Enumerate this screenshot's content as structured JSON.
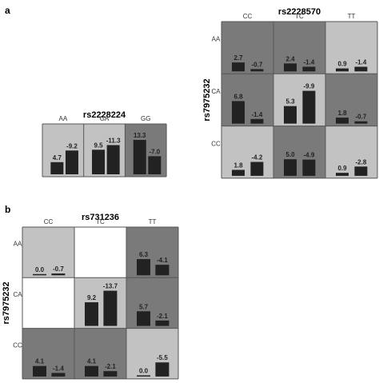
{
  "figure": {
    "panel_a_label": "a",
    "panel_b_label": "b"
  },
  "colors": {
    "light": "#c2c2c2",
    "dark": "#7a7a7a",
    "white": "#ffffff",
    "bar": "#222222",
    "border": "#555555"
  },
  "chart_data": [
    {
      "type": "bar",
      "title": "rs2228224",
      "col_labels": [
        "AA",
        "GA",
        "GG"
      ],
      "row_labels": [],
      "cells": [
        [
          {
            "shade": "light",
            "values": [
              4.7,
              -9.2
            ]
          },
          {
            "shade": "light",
            "values": [
              9.5,
              -11.3
            ]
          },
          {
            "shade": "dark",
            "values": [
              13.3,
              -7.0
            ]
          }
        ]
      ],
      "value_labels": [
        [
          [
            "4.7",
            "-9.2"
          ],
          [
            "9.5",
            "-11.3"
          ],
          [
            "13.3",
            "-7.0"
          ]
        ]
      ]
    },
    {
      "type": "bar",
      "title": "rs2228570",
      "ylabel": "rs7975232",
      "col_labels": [
        "CC",
        "TC",
        "TT"
      ],
      "row_labels": [
        "AA",
        "CA",
        "CC"
      ],
      "cells": [
        [
          {
            "shade": "dark",
            "values": [
              2.7,
              -0.7
            ]
          },
          {
            "shade": "dark",
            "values": [
              2.4,
              -1.4
            ]
          },
          {
            "shade": "light",
            "values": [
              0.9,
              -1.4
            ]
          }
        ],
        [
          {
            "shade": "dark",
            "values": [
              6.8,
              -1.4
            ]
          },
          {
            "shade": "light",
            "values": [
              5.3,
              -9.9
            ]
          },
          {
            "shade": "dark",
            "values": [
              1.8,
              -0.7
            ]
          }
        ],
        [
          {
            "shade": "light",
            "values": [
              1.8,
              -4.2
            ]
          },
          {
            "shade": "dark",
            "values": [
              5.0,
              -4.9
            ]
          },
          {
            "shade": "light",
            "values": [
              0.9,
              -2.8
            ]
          }
        ]
      ],
      "value_labels": [
        [
          [
            "2.7",
            "-0.7"
          ],
          [
            "2.4",
            "-1.4"
          ],
          [
            "0.9",
            "-1.4"
          ]
        ],
        [
          [
            "6.8",
            "-1.4"
          ],
          [
            "5.3",
            "-9.9"
          ],
          [
            "1.8",
            "-0.7"
          ]
        ],
        [
          [
            "1.8",
            "-4.2"
          ],
          [
            "5.0",
            "-4.9"
          ],
          [
            "0.9",
            "-2.8"
          ]
        ]
      ]
    },
    {
      "type": "bar",
      "title": "rs731236",
      "ylabel": "rs7975232",
      "col_labels": [
        "CC",
        "TC",
        "TT"
      ],
      "row_labels": [
        "AA",
        "CA",
        "CC"
      ],
      "cells": [
        [
          {
            "shade": "light",
            "values": [
              0.0,
              -0.7
            ]
          },
          {
            "shade": "white",
            "values": []
          },
          {
            "shade": "dark",
            "values": [
              6.3,
              -4.1
            ]
          }
        ],
        [
          {
            "shade": "white",
            "values": []
          },
          {
            "shade": "light",
            "values": [
              9.2,
              -13.7
            ]
          },
          {
            "shade": "dark",
            "values": [
              5.7,
              -2.1
            ]
          }
        ],
        [
          {
            "shade": "dark",
            "values": [
              4.1,
              -1.4
            ]
          },
          {
            "shade": "dark",
            "values": [
              4.1,
              -2.1
            ]
          },
          {
            "shade": "light",
            "values": [
              0.0,
              -5.5
            ]
          }
        ]
      ],
      "value_labels": [
        [
          [
            "0.0",
            "-0.7"
          ],
          [],
          [
            "6.3",
            "-4.1"
          ]
        ],
        [
          [],
          [
            "9.2",
            "-13.7"
          ],
          [
            "5.7",
            "-2.1"
          ]
        ],
        [
          [
            "4.1",
            "-1.4"
          ],
          [
            "4.1",
            "-2.1"
          ],
          [
            "0.0",
            "-5.5"
          ]
        ]
      ]
    }
  ]
}
